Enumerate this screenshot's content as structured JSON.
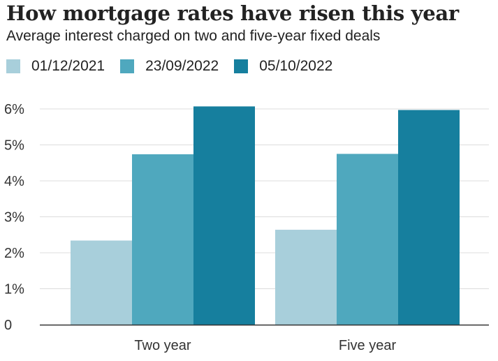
{
  "chart_data": {
    "type": "bar",
    "title": "How mortgage rates have risen this year",
    "subtitle": "Average interest charged on two and five-year fixed deals",
    "categories": [
      "Two year",
      "Five year"
    ],
    "series": [
      {
        "name": "01/12/2021",
        "color": "#a8cfdb",
        "values": [
          2.34,
          2.64
        ]
      },
      {
        "name": "23/09/2022",
        "color": "#4fa8be",
        "values": [
          4.74,
          4.75
        ]
      },
      {
        "name": "05/10/2022",
        "color": "#167f9e",
        "values": [
          6.07,
          5.97
        ]
      }
    ],
    "y_ticks": [
      {
        "value": 0,
        "label": "0"
      },
      {
        "value": 1,
        "label": "1%"
      },
      {
        "value": 2,
        "label": "2%"
      },
      {
        "value": 3,
        "label": "3%"
      },
      {
        "value": 4,
        "label": "4%"
      },
      {
        "value": 5,
        "label": "5%"
      },
      {
        "value": 6,
        "label": "6%"
      }
    ],
    "ylim": [
      0,
      6
    ],
    "grid": true,
    "legend_position": "top-left"
  }
}
